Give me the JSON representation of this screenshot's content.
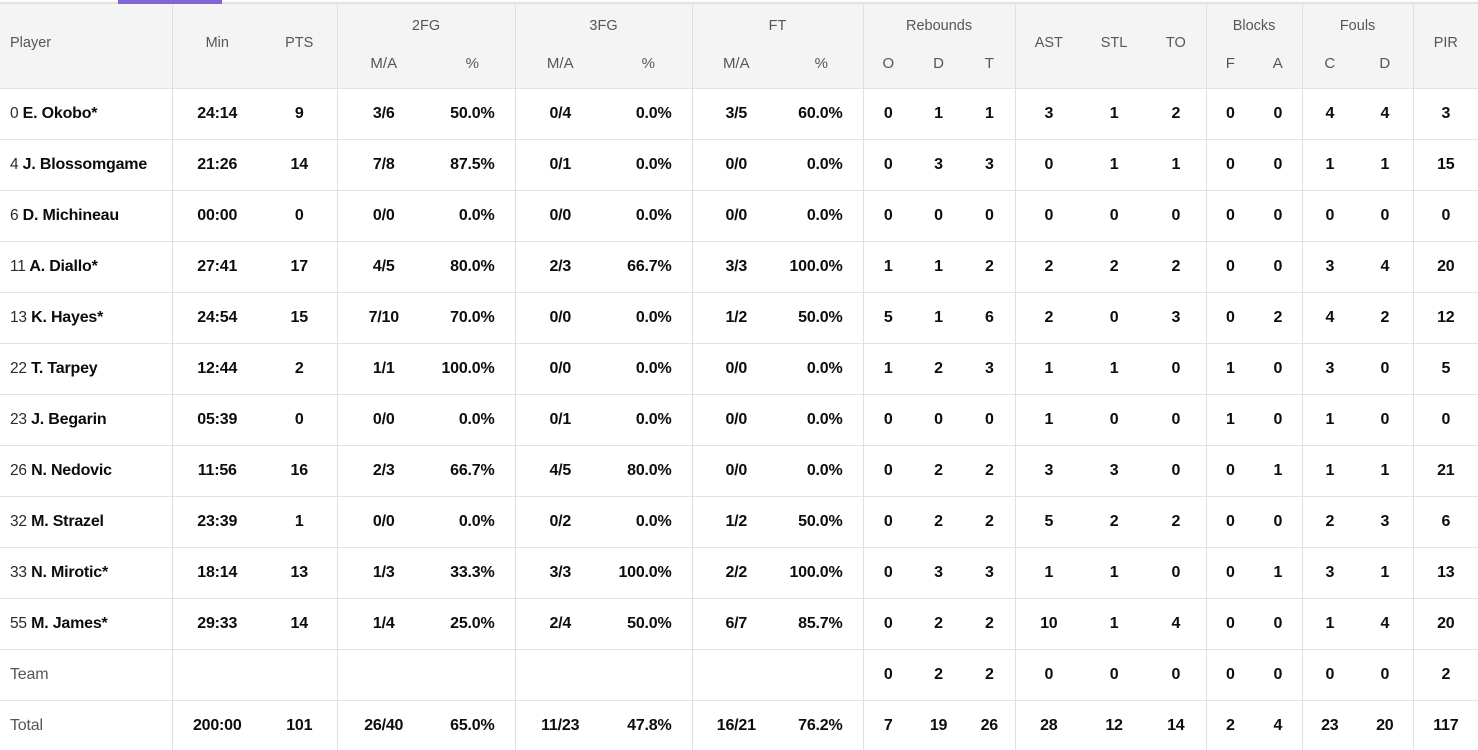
{
  "accent": {
    "tab_indicator_color": "#8266d6"
  },
  "table": {
    "groups": {
      "fg2": "2FG",
      "fg3": "3FG",
      "ft": "FT",
      "rebounds": "Rebounds",
      "blocks": "Blocks",
      "fouls": "Fouls"
    },
    "columns": {
      "player": "Player",
      "min": "Min",
      "pts": "PTS",
      "ma": "M/A",
      "pct": "%",
      "o": "O",
      "d": "D",
      "t": "T",
      "ast": "AST",
      "stl": "STL",
      "to": "TO",
      "f": "F",
      "a": "A",
      "c": "C",
      "pir": "PIR"
    },
    "rows": [
      {
        "num": "0",
        "name": "E. Okobo*",
        "cells": [
          "24:14",
          "9",
          "3/6",
          "50.0%",
          "0/4",
          "0.0%",
          "3/5",
          "60.0%",
          "0",
          "1",
          "1",
          "3",
          "1",
          "2",
          "0",
          "0",
          "4",
          "4",
          "3"
        ]
      },
      {
        "num": "4",
        "name": "J. Blossomgame",
        "cells": [
          "21:26",
          "14",
          "7/8",
          "87.5%",
          "0/1",
          "0.0%",
          "0/0",
          "0.0%",
          "0",
          "3",
          "3",
          "0",
          "1",
          "1",
          "0",
          "0",
          "1",
          "1",
          "15"
        ]
      },
      {
        "num": "6",
        "name": "D. Michineau",
        "cells": [
          "00:00",
          "0",
          "0/0",
          "0.0%",
          "0/0",
          "0.0%",
          "0/0",
          "0.0%",
          "0",
          "0",
          "0",
          "0",
          "0",
          "0",
          "0",
          "0",
          "0",
          "0",
          "0"
        ]
      },
      {
        "num": "11",
        "name": "A. Diallo*",
        "cells": [
          "27:41",
          "17",
          "4/5",
          "80.0%",
          "2/3",
          "66.7%",
          "3/3",
          "100.0%",
          "1",
          "1",
          "2",
          "2",
          "2",
          "2",
          "0",
          "0",
          "3",
          "4",
          "20"
        ]
      },
      {
        "num": "13",
        "name": "K. Hayes*",
        "cells": [
          "24:54",
          "15",
          "7/10",
          "70.0%",
          "0/0",
          "0.0%",
          "1/2",
          "50.0%",
          "5",
          "1",
          "6",
          "2",
          "0",
          "3",
          "0",
          "2",
          "4",
          "2",
          "12"
        ]
      },
      {
        "num": "22",
        "name": "T. Tarpey",
        "cells": [
          "12:44",
          "2",
          "1/1",
          "100.0%",
          "0/0",
          "0.0%",
          "0/0",
          "0.0%",
          "1",
          "2",
          "3",
          "1",
          "1",
          "0",
          "1",
          "0",
          "3",
          "0",
          "5"
        ]
      },
      {
        "num": "23",
        "name": "J. Begarin",
        "cells": [
          "05:39",
          "0",
          "0/0",
          "0.0%",
          "0/1",
          "0.0%",
          "0/0",
          "0.0%",
          "0",
          "0",
          "0",
          "1",
          "0",
          "0",
          "1",
          "0",
          "1",
          "0",
          "0"
        ]
      },
      {
        "num": "26",
        "name": "N. Nedovic",
        "cells": [
          "11:56",
          "16",
          "2/3",
          "66.7%",
          "4/5",
          "80.0%",
          "0/0",
          "0.0%",
          "0",
          "2",
          "2",
          "3",
          "3",
          "0",
          "0",
          "1",
          "1",
          "1",
          "21"
        ]
      },
      {
        "num": "32",
        "name": "M. Strazel",
        "cells": [
          "23:39",
          "1",
          "0/0",
          "0.0%",
          "0/2",
          "0.0%",
          "1/2",
          "50.0%",
          "0",
          "2",
          "2",
          "5",
          "2",
          "2",
          "0",
          "0",
          "2",
          "3",
          "6"
        ]
      },
      {
        "num": "33",
        "name": "N. Mirotic*",
        "cells": [
          "18:14",
          "13",
          "1/3",
          "33.3%",
          "3/3",
          "100.0%",
          "2/2",
          "100.0%",
          "0",
          "3",
          "3",
          "1",
          "1",
          "0",
          "0",
          "1",
          "3",
          "1",
          "13"
        ]
      },
      {
        "num": "55",
        "name": "M. James*",
        "cells": [
          "29:33",
          "14",
          "1/4",
          "25.0%",
          "2/4",
          "50.0%",
          "6/7",
          "85.7%",
          "0",
          "2",
          "2",
          "10",
          "1",
          "4",
          "0",
          "0",
          "1",
          "4",
          "20"
        ]
      }
    ],
    "team_row": {
      "label": "Team",
      "cells": [
        "",
        "",
        "",
        "",
        "",
        "",
        "",
        "",
        "0",
        "2",
        "2",
        "0",
        "0",
        "0",
        "0",
        "0",
        "0",
        "0",
        "2"
      ]
    },
    "total_row": {
      "label": "Total",
      "cells": [
        "200:00",
        "101",
        "26/40",
        "65.0%",
        "11/23",
        "47.8%",
        "16/21",
        "76.2%",
        "7",
        "19",
        "26",
        "28",
        "12",
        "14",
        "2",
        "4",
        "23",
        "20",
        "117"
      ]
    }
  }
}
